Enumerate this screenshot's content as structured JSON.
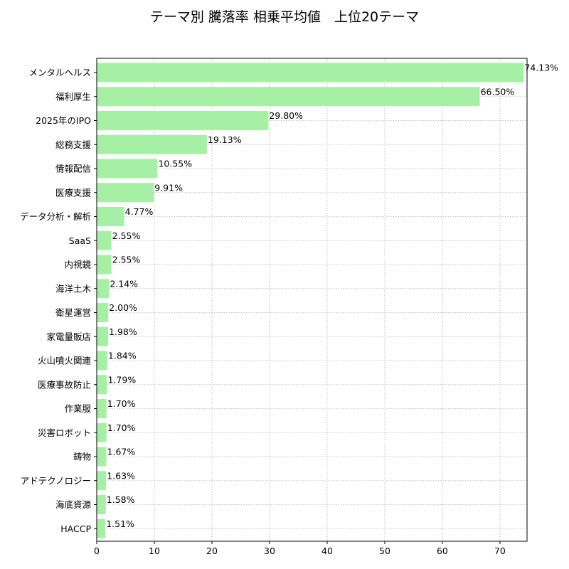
{
  "chart_data": {
    "type": "bar",
    "orientation": "horizontal",
    "title": "テーマ別 騰落率 相乗平均値　上位20テーマ",
    "xlabel": "",
    "ylabel": "",
    "xlim": [
      0,
      74.7
    ],
    "xticks": [
      0,
      10,
      20,
      30,
      40,
      50,
      60,
      70
    ],
    "grid": true,
    "legend": "none",
    "bar_color": "#a6f0a6",
    "categories": [
      "メンタルヘルス",
      "福利厚生",
      "2025年のIPO",
      "総務支援",
      "情報配信",
      "医療支援",
      "データ分析・解析",
      "SaaS",
      "内視鏡",
      "海洋土木",
      "衛星運営",
      "家電量販店",
      "火山噴火関連",
      "医療事故防止",
      "作業服",
      "災害ロボット",
      "鋳物",
      "アドテクノロジー",
      "海底資源",
      "HACCP"
    ],
    "values": [
      74.13,
      66.5,
      29.8,
      19.13,
      10.55,
      9.91,
      4.77,
      2.55,
      2.55,
      2.14,
      2.0,
      1.98,
      1.84,
      1.79,
      1.7,
      1.7,
      1.67,
      1.63,
      1.58,
      1.51
    ],
    "value_labels": [
      "74.13%",
      "66.50%",
      "29.80%",
      "19.13%",
      "10.55%",
      "9.91%",
      "4.77%",
      "2.55%",
      "2.55%",
      "2.14%",
      "2.00%",
      "1.98%",
      "1.84%",
      "1.79%",
      "1.70%",
      "1.70%",
      "1.67%",
      "1.63%",
      "1.58%",
      "1.51%"
    ]
  }
}
